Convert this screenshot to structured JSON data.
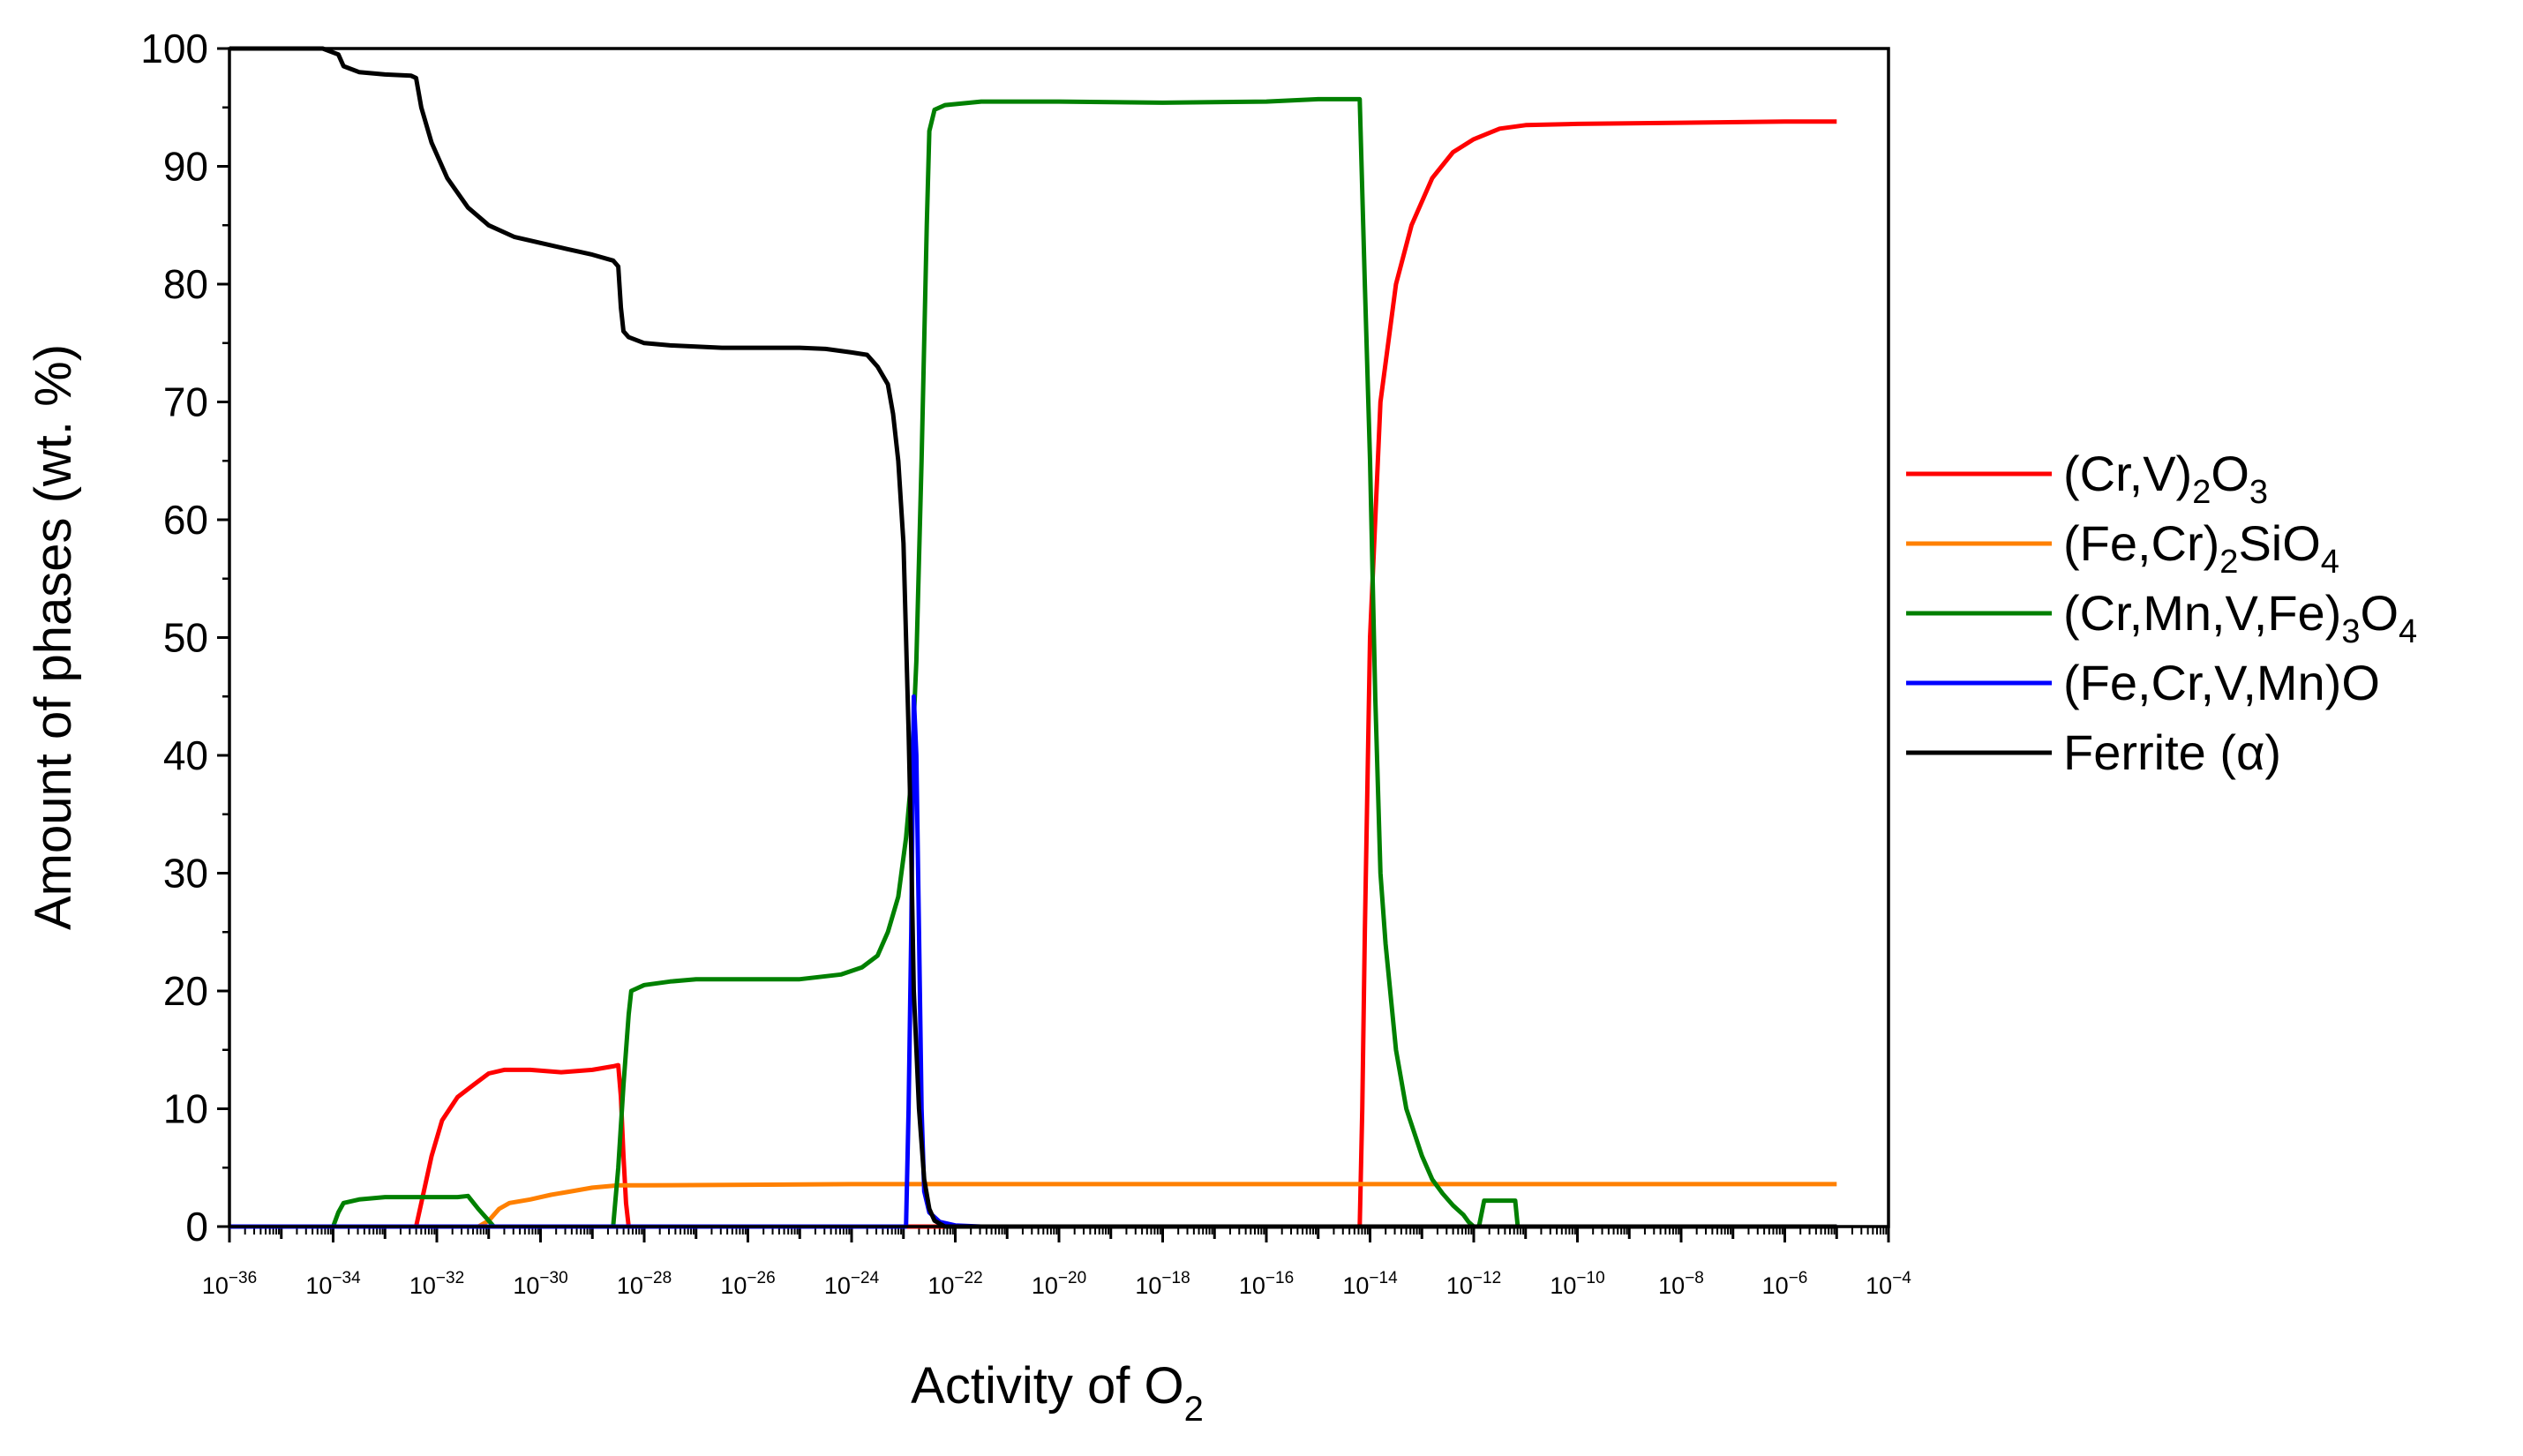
{
  "chart_data": {
    "type": "line",
    "title": "",
    "xlabel": "Activity of O",
    "xlabel_sub": "2",
    "ylabel": "Amount of phases (wt. %)",
    "xscale": "log",
    "xlim_exponent": [
      -36,
      -4
    ],
    "ylim": [
      0,
      100
    ],
    "y_ticks": [
      "0",
      "10",
      "20",
      "30",
      "40",
      "50",
      "60",
      "70",
      "80",
      "90",
      "100"
    ],
    "x_tick_base": "10",
    "x_ticks": [
      "−36",
      "−34",
      "−32",
      "−30",
      "−28",
      "−26",
      "−24",
      "−22",
      "−20",
      "−18",
      "−16",
      "−14",
      "−12",
      "−10",
      "−8",
      "−6",
      "−4"
    ],
    "legend_position": "right",
    "series": [
      {
        "key": "cr_v_2o3",
        "name": "(Cr,V)2O3",
        "legend_parts": [
          [
            "(Cr,V)",
            ""
          ],
          [
            "2",
            "sub"
          ],
          [
            "O",
            ""
          ],
          [
            "3",
            "sub"
          ]
        ],
        "color": "#ff0000",
        "points": [
          [
            -36,
            0
          ],
          [
            -32.4,
            0
          ],
          [
            -32.3,
            2
          ],
          [
            -32.1,
            6
          ],
          [
            -31.9,
            9
          ],
          [
            -31.6,
            11
          ],
          [
            -31.3,
            12
          ],
          [
            -31.0,
            13
          ],
          [
            -30.7,
            13.3
          ],
          [
            -30.2,
            13.3
          ],
          [
            -29.6,
            13.1
          ],
          [
            -29.0,
            13.3
          ],
          [
            -28.6,
            13.6
          ],
          [
            -28.5,
            13.7
          ],
          [
            -28.45,
            11
          ],
          [
            -28.4,
            6
          ],
          [
            -28.35,
            2
          ],
          [
            -28.3,
            0
          ],
          [
            -14.2,
            0
          ],
          [
            -14.15,
            10
          ],
          [
            -14.1,
            25
          ],
          [
            -14.0,
            50
          ],
          [
            -13.8,
            70
          ],
          [
            -13.5,
            80
          ],
          [
            -13.2,
            85
          ],
          [
            -12.8,
            89
          ],
          [
            -12.4,
            91.2
          ],
          [
            -12.0,
            92.3
          ],
          [
            -11.5,
            93.2
          ],
          [
            -11.0,
            93.5
          ],
          [
            -10.0,
            93.6
          ],
          [
            -8,
            93.7
          ],
          [
            -6,
            93.8
          ],
          [
            -5.0,
            93.8
          ]
        ]
      },
      {
        "key": "fe_cr_2sio4",
        "name": "(Fe,Cr)2SiO4",
        "legend_parts": [
          [
            "(Fe,Cr)",
            ""
          ],
          [
            "2",
            "sub"
          ],
          [
            "SiO",
            ""
          ],
          [
            "4",
            "sub"
          ]
        ],
        "color": "#ff8000",
        "points": [
          [
            -36,
            0
          ],
          [
            -31.2,
            0
          ],
          [
            -31.0,
            0.5
          ],
          [
            -30.8,
            1.5
          ],
          [
            -30.6,
            2.0
          ],
          [
            -30.2,
            2.3
          ],
          [
            -29.8,
            2.7
          ],
          [
            -29.4,
            3.0
          ],
          [
            -29.0,
            3.3
          ],
          [
            -28.5,
            3.5
          ],
          [
            -28.0,
            3.5
          ],
          [
            -24,
            3.6
          ],
          [
            -20,
            3.6
          ],
          [
            -16,
            3.6
          ],
          [
            -12,
            3.6
          ],
          [
            -8,
            3.6
          ],
          [
            -5.0,
            3.6
          ]
        ]
      },
      {
        "key": "cr_mn_v_fe_3o4",
        "name": "(Cr,Mn,V,Fe)3O4",
        "legend_parts": [
          [
            "(Cr,Mn,V,Fe)",
            ""
          ],
          [
            "3",
            "sub"
          ],
          [
            "O",
            ""
          ],
          [
            "4",
            "sub"
          ]
        ],
        "color": "#008000",
        "points": [
          [
            -36,
            0
          ],
          [
            -34.0,
            0
          ],
          [
            -33.9,
            1.2
          ],
          [
            -33.8,
            2.0
          ],
          [
            -33.5,
            2.3
          ],
          [
            -33.0,
            2.5
          ],
          [
            -32.0,
            2.5
          ],
          [
            -31.6,
            2.5
          ],
          [
            -31.4,
            2.6
          ],
          [
            -31.2,
            1.5
          ],
          [
            -31.0,
            0.5
          ],
          [
            -30.9,
            0
          ],
          [
            -28.6,
            0
          ],
          [
            -28.5,
            5
          ],
          [
            -28.4,
            12
          ],
          [
            -28.3,
            18
          ],
          [
            -28.25,
            20
          ],
          [
            -28.0,
            20.5
          ],
          [
            -27.5,
            20.8
          ],
          [
            -27.0,
            21.0
          ],
          [
            -25.0,
            21.0
          ],
          [
            -24.2,
            21.4
          ],
          [
            -23.8,
            22.0
          ],
          [
            -23.5,
            23.0
          ],
          [
            -23.3,
            25
          ],
          [
            -23.1,
            28
          ],
          [
            -22.95,
            33
          ],
          [
            -22.85,
            38
          ],
          [
            -22.75,
            48
          ],
          [
            -22.65,
            65
          ],
          [
            -22.55,
            85
          ],
          [
            -22.5,
            93
          ],
          [
            -22.4,
            94.8
          ],
          [
            -22.2,
            95.2
          ],
          [
            -21.5,
            95.5
          ],
          [
            -20,
            95.5
          ],
          [
            -18,
            95.4
          ],
          [
            -16,
            95.5
          ],
          [
            -15,
            95.7
          ],
          [
            -14.5,
            95.7
          ],
          [
            -14.2,
            95.7
          ],
          [
            -14.1,
            80
          ],
          [
            -14.0,
            65
          ],
          [
            -13.9,
            45
          ],
          [
            -13.8,
            30
          ],
          [
            -13.7,
            24
          ],
          [
            -13.5,
            15
          ],
          [
            -13.3,
            10
          ],
          [
            -13.0,
            6
          ],
          [
            -12.8,
            4
          ],
          [
            -12.6,
            2.8
          ],
          [
            -12.4,
            1.8
          ],
          [
            -12.2,
            1.0
          ],
          [
            -12.1,
            0.4
          ],
          [
            -12.0,
            0
          ],
          [
            -11.9,
            0
          ],
          [
            -11.8,
            2.2
          ],
          [
            -11.2,
            2.2
          ],
          [
            -11.15,
            0
          ],
          [
            -5.0,
            0
          ]
        ]
      },
      {
        "key": "fe_cr_v_mn_o",
        "name": "(Fe,Cr,V,Mn)O",
        "legend_parts": [
          [
            "(Fe,Cr,V,Mn)O",
            ""
          ]
        ],
        "color": "#0000ff",
        "points": [
          [
            -36,
            0
          ],
          [
            -22.95,
            0
          ],
          [
            -22.9,
            10
          ],
          [
            -22.85,
            25
          ],
          [
            -22.8,
            45
          ],
          [
            -22.75,
            40
          ],
          [
            -22.7,
            25
          ],
          [
            -22.65,
            10
          ],
          [
            -22.6,
            3
          ],
          [
            -22.5,
            1.2
          ],
          [
            -22.3,
            0.4
          ],
          [
            -22.0,
            0.1
          ],
          [
            -21.5,
            0
          ],
          [
            -5.0,
            0
          ]
        ]
      },
      {
        "key": "ferrite_alpha",
        "name": "Ferrite (α)",
        "legend_parts": [
          [
            "Ferrite (α)",
            ""
          ]
        ],
        "color": "#000000",
        "points": [
          [
            -36,
            100
          ],
          [
            -34.2,
            100
          ],
          [
            -33.9,
            99.5
          ],
          [
            -33.8,
            98.5
          ],
          [
            -33.5,
            98
          ],
          [
            -33.0,
            97.8
          ],
          [
            -32.5,
            97.7
          ],
          [
            -32.4,
            97.5
          ],
          [
            -32.3,
            95
          ],
          [
            -32.1,
            92
          ],
          [
            -31.8,
            89
          ],
          [
            -31.4,
            86.5
          ],
          [
            -31.0,
            85
          ],
          [
            -30.5,
            84
          ],
          [
            -30.0,
            83.5
          ],
          [
            -29.5,
            83
          ],
          [
            -29.0,
            82.5
          ],
          [
            -28.6,
            82.0
          ],
          [
            -28.5,
            81.5
          ],
          [
            -28.45,
            78
          ],
          [
            -28.4,
            76
          ],
          [
            -28.3,
            75.5
          ],
          [
            -28.0,
            75
          ],
          [
            -27.5,
            74.8
          ],
          [
            -26.5,
            74.6
          ],
          [
            -25,
            74.6
          ],
          [
            -24.5,
            74.5
          ],
          [
            -24.0,
            74.2
          ],
          [
            -23.7,
            74
          ],
          [
            -23.5,
            73
          ],
          [
            -23.3,
            71.5
          ],
          [
            -23.2,
            69
          ],
          [
            -23.1,
            65
          ],
          [
            -23.0,
            58
          ],
          [
            -22.95,
            50
          ],
          [
            -22.9,
            42
          ],
          [
            -22.85,
            32
          ],
          [
            -22.8,
            20
          ],
          [
            -22.7,
            10
          ],
          [
            -22.6,
            4
          ],
          [
            -22.5,
            1.5
          ],
          [
            -22.4,
            0.5
          ],
          [
            -22.2,
            0
          ],
          [
            -5.0,
            0
          ]
        ]
      }
    ]
  }
}
